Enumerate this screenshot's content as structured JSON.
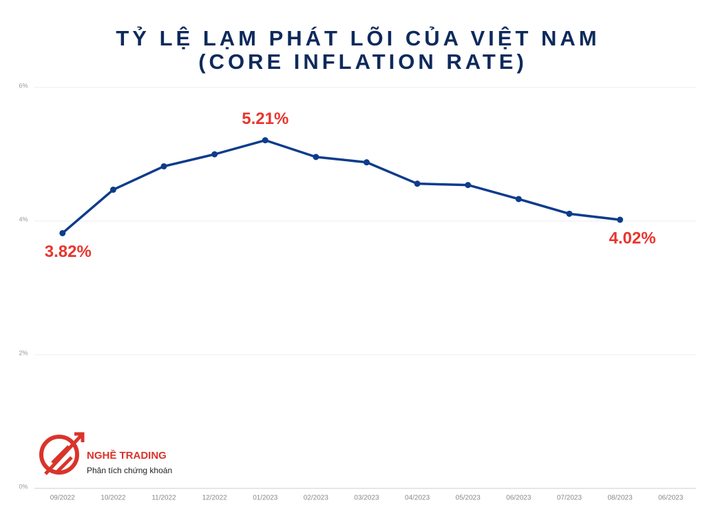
{
  "chart_data": {
    "type": "line",
    "title": [
      "TỶ LỆ LẠM PHÁT LÕI CỦA VIỆT NAM",
      "(CORE INFLATION RATE)"
    ],
    "categories": [
      "09/2022",
      "10/2022",
      "11/2022",
      "12/2022",
      "01/2023",
      "02/2023",
      "03/2023",
      "04/2023",
      "05/2023",
      "06/2023",
      "07/2023",
      "08/2023",
      "06/2023"
    ],
    "values": [
      3.82,
      4.47,
      4.82,
      5.0,
      5.21,
      4.96,
      4.88,
      4.56,
      4.54,
      4.33,
      4.11,
      4.02,
      null
    ],
    "value_labels": [
      "3.82%",
      null,
      null,
      null,
      "5.21%",
      null,
      null,
      null,
      null,
      null,
      null,
      "4.02%",
      null
    ],
    "color": "#0d3c8c",
    "label_color": "#e8352e",
    "ylim": [
      0,
      6
    ],
    "yticks": [
      {
        "value": 0,
        "label": "0%"
      },
      {
        "value": 2,
        "label": "2%"
      },
      {
        "value": 4,
        "label": "4%"
      },
      {
        "value": 6,
        "label": "6%"
      }
    ],
    "grid": true
  },
  "logo": {
    "name": "NGHỀ TRADING",
    "tagline": "Phân tích chứng khoán"
  }
}
